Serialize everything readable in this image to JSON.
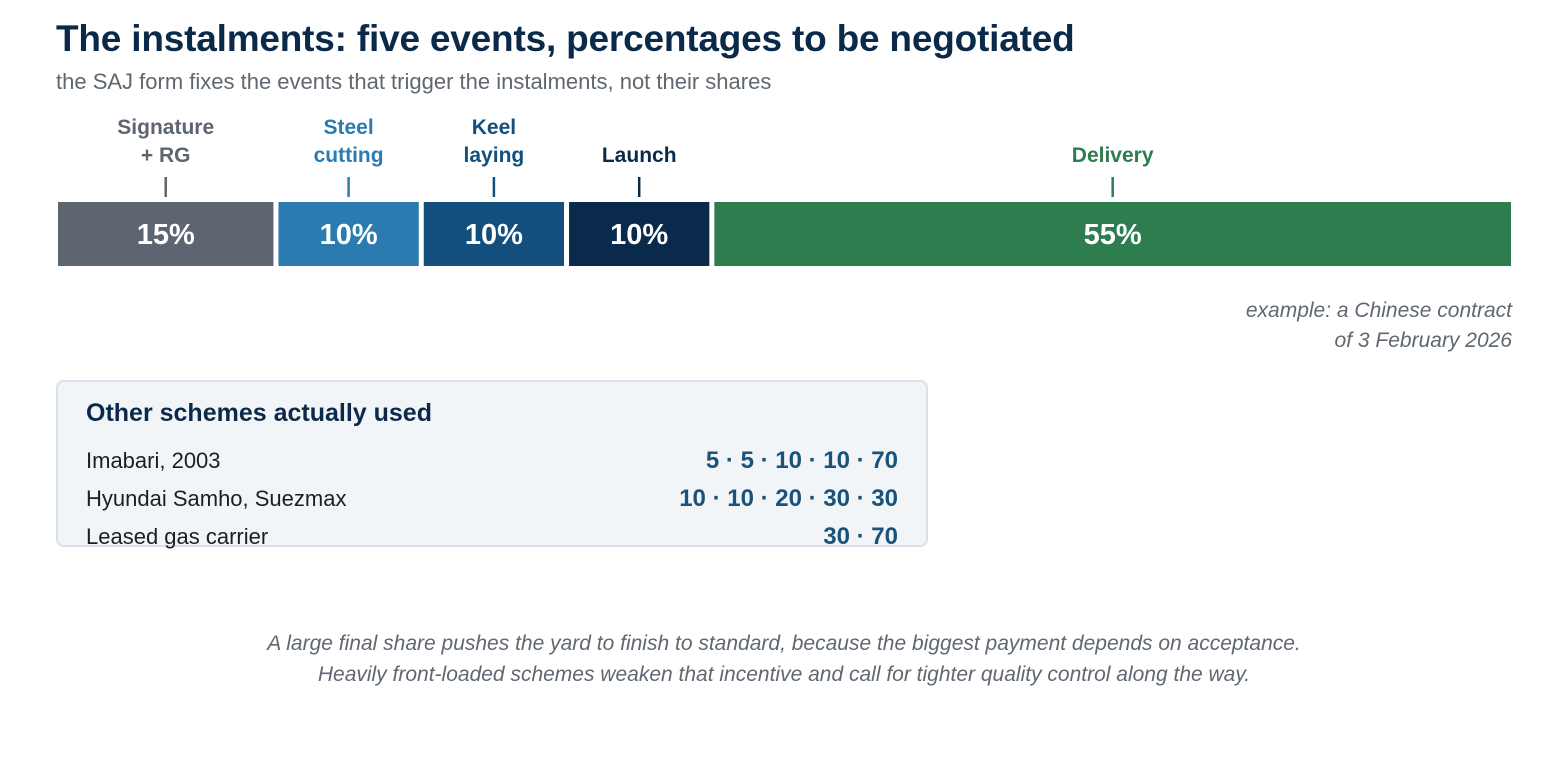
{
  "title": "The instalments: five events, percentages to be negotiated",
  "subtitle": "the SAJ form fixes the events that trigger the instalments, not their shares",
  "chart_data": {
    "type": "bar",
    "orientation": "horizontal-stacked",
    "unit": "%",
    "categories": [
      [
        "Signature",
        "+ RG"
      ],
      [
        "Steel",
        "cutting"
      ],
      [
        "Keel",
        "laying"
      ],
      [
        "Launch"
      ],
      [
        "Delivery"
      ]
    ],
    "values": [
      15,
      10,
      10,
      10,
      55
    ],
    "value_labels": [
      "15%",
      "10%",
      "10%",
      "10%",
      "55%"
    ],
    "colors": [
      "#5d6670",
      "#2b7bb0",
      "#134f7c",
      "#0a2a4b",
      "#2e7d4f"
    ],
    "label_colors": [
      "#5d6670",
      "#2b7bb0",
      "#134f7c",
      "#0a2a4b",
      "#2e7d4f"
    ],
    "total": 100
  },
  "example_note": {
    "line1": "example: a Chinese contract",
    "line2": "of 3 February 2026"
  },
  "schemes": {
    "title": "Other schemes actually used",
    "rows": [
      {
        "name": "Imabari, 2003",
        "values": "5 · 5 · 10 · 10 · 70"
      },
      {
        "name": "Hyundai Samho, Suezmax",
        "values": "10 · 10 · 20 · 30 · 30"
      },
      {
        "name": "Leased gas carrier",
        "values": "30 · 70"
      }
    ]
  },
  "footnote": {
    "line1": "A large final share pushes the yard to finish to standard, because the biggest payment depends on acceptance.",
    "line2": "Heavily front-loaded schemes weaken that incentive and call for tighter quality control along the way."
  }
}
